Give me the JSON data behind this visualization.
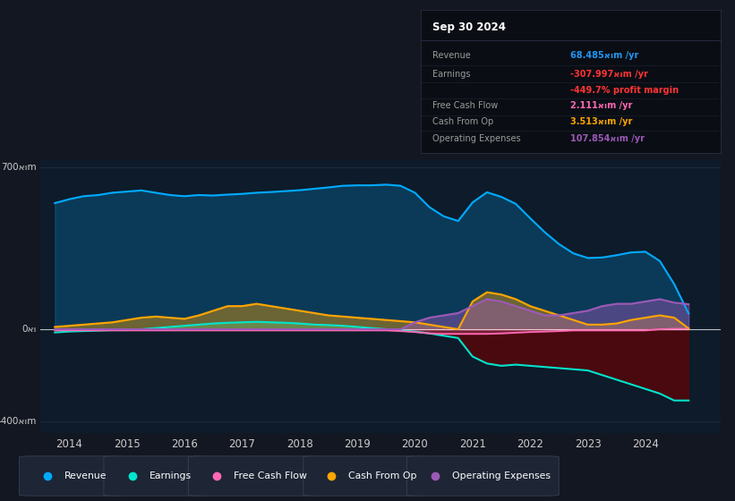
{
  "bg_color": "#131722",
  "plot_bg_color": "#0d1b2a",
  "title": "Sep 30 2024",
  "ylim": [
    -450,
    730
  ],
  "xlim_start": 2013.5,
  "xlim_end": 2025.3,
  "colors": {
    "revenue": "#00aaff",
    "earnings": "#00e5cc",
    "free_cash_flow": "#ff69b4",
    "cash_from_op": "#ffa500",
    "operating_expenses": "#9b59b6"
  },
  "legend": [
    {
      "label": "Revenue",
      "color": "#00aaff"
    },
    {
      "label": "Earnings",
      "color": "#00e5cc"
    },
    {
      "label": "Free Cash Flow",
      "color": "#ff69b4"
    },
    {
      "label": "Cash From Op",
      "color": "#ffa500"
    },
    {
      "label": "Operating Expenses",
      "color": "#9b59b6"
    }
  ],
  "x_ticks": [
    2014,
    2015,
    2016,
    2017,
    2018,
    2019,
    2020,
    2021,
    2022,
    2023,
    2024
  ],
  "revenue_x": [
    2013.75,
    2014.0,
    2014.25,
    2014.5,
    2014.75,
    2015.0,
    2015.25,
    2015.5,
    2015.75,
    2016.0,
    2016.25,
    2016.5,
    2016.75,
    2017.0,
    2017.25,
    2017.5,
    2017.75,
    2018.0,
    2018.25,
    2018.5,
    2018.75,
    2019.0,
    2019.25,
    2019.5,
    2019.75,
    2020.0,
    2020.25,
    2020.5,
    2020.75,
    2021.0,
    2021.25,
    2021.5,
    2021.75,
    2022.0,
    2022.25,
    2022.5,
    2022.75,
    2023.0,
    2023.25,
    2023.5,
    2023.75,
    2024.0,
    2024.25,
    2024.5,
    2024.75
  ],
  "revenue_y": [
    545,
    562,
    575,
    580,
    590,
    595,
    600,
    590,
    580,
    575,
    580,
    578,
    582,
    585,
    590,
    593,
    597,
    601,
    607,
    613,
    620,
    622,
    622,
    625,
    620,
    590,
    528,
    488,
    468,
    548,
    592,
    572,
    542,
    480,
    420,
    368,
    328,
    308,
    310,
    320,
    332,
    335,
    295,
    195,
    68
  ],
  "earnings_x": [
    2013.75,
    2014.0,
    2014.25,
    2014.5,
    2014.75,
    2015.0,
    2015.25,
    2015.5,
    2015.75,
    2016.0,
    2016.25,
    2016.5,
    2016.75,
    2017.0,
    2017.25,
    2017.5,
    2017.75,
    2018.0,
    2018.25,
    2018.5,
    2018.75,
    2019.0,
    2019.25,
    2019.5,
    2019.75,
    2020.0,
    2020.25,
    2020.5,
    2020.75,
    2021.0,
    2021.25,
    2021.5,
    2021.75,
    2022.0,
    2022.25,
    2022.5,
    2022.75,
    2023.0,
    2023.25,
    2023.5,
    2023.75,
    2024.0,
    2024.25,
    2024.5,
    2024.75
  ],
  "earnings_y": [
    -14,
    -10,
    -8,
    -6,
    -4,
    -4,
    0,
    5,
    10,
    15,
    20,
    25,
    28,
    30,
    32,
    30,
    28,
    25,
    20,
    18,
    15,
    10,
    5,
    0,
    -5,
    -10,
    -18,
    -28,
    -38,
    -118,
    -148,
    -158,
    -153,
    -158,
    -163,
    -168,
    -173,
    -178,
    -198,
    -218,
    -238,
    -258,
    -278,
    -308,
    -308
  ],
  "fcf_x": [
    2013.75,
    2014.0,
    2014.25,
    2014.5,
    2014.75,
    2015.0,
    2015.25,
    2015.5,
    2015.75,
    2016.0,
    2016.25,
    2016.5,
    2016.75,
    2017.0,
    2017.25,
    2017.5,
    2017.75,
    2018.0,
    2018.25,
    2018.5,
    2018.75,
    2019.0,
    2019.25,
    2019.5,
    2019.75,
    2020.0,
    2020.25,
    2020.5,
    2020.75,
    2021.0,
    2021.25,
    2021.5,
    2021.75,
    2022.0,
    2022.25,
    2022.5,
    2022.75,
    2023.0,
    2023.25,
    2023.5,
    2023.75,
    2024.0,
    2024.25,
    2024.5,
    2024.75
  ],
  "fcf_y": [
    -5,
    -5,
    -5,
    -5,
    -5,
    -5,
    -5,
    -5,
    -5,
    -5,
    -5,
    -5,
    -5,
    -5,
    -5,
    -5,
    -5,
    -5,
    -5,
    -5,
    -5,
    -5,
    -5,
    -5,
    -8,
    -12,
    -18,
    -20,
    -20,
    -20,
    -20,
    -18,
    -15,
    -12,
    -10,
    -8,
    -5,
    -5,
    -5,
    -5,
    -5,
    -5,
    0,
    2,
    2
  ],
  "cfo_x": [
    2013.75,
    2014.0,
    2014.25,
    2014.5,
    2014.75,
    2015.0,
    2015.25,
    2015.5,
    2015.75,
    2016.0,
    2016.25,
    2016.5,
    2016.75,
    2017.0,
    2017.25,
    2017.5,
    2017.75,
    2018.0,
    2018.25,
    2018.5,
    2018.75,
    2019.0,
    2019.25,
    2019.5,
    2019.75,
    2020.0,
    2020.25,
    2020.5,
    2020.75,
    2021.0,
    2021.25,
    2021.5,
    2021.75,
    2022.0,
    2022.25,
    2022.5,
    2022.75,
    2023.0,
    2023.25,
    2023.5,
    2023.75,
    2024.0,
    2024.25,
    2024.5,
    2024.75
  ],
  "cfo_y": [
    10,
    15,
    20,
    25,
    30,
    40,
    50,
    55,
    50,
    45,
    60,
    80,
    100,
    100,
    110,
    100,
    90,
    80,
    70,
    60,
    55,
    50,
    45,
    40,
    35,
    30,
    20,
    10,
    0,
    120,
    160,
    150,
    130,
    100,
    80,
    60,
    40,
    20,
    20,
    25,
    40,
    50,
    60,
    50,
    3.5
  ],
  "opex_x": [
    2013.75,
    2014.0,
    2014.25,
    2014.5,
    2014.75,
    2015.0,
    2015.25,
    2015.5,
    2015.75,
    2016.0,
    2016.25,
    2016.5,
    2016.75,
    2017.0,
    2017.25,
    2017.5,
    2017.75,
    2018.0,
    2018.25,
    2018.5,
    2018.75,
    2019.0,
    2019.25,
    2019.5,
    2019.75,
    2020.0,
    2020.25,
    2020.5,
    2020.75,
    2021.0,
    2021.25,
    2021.5,
    2021.75,
    2022.0,
    2022.25,
    2022.5,
    2022.75,
    2023.0,
    2023.25,
    2023.5,
    2023.75,
    2024.0,
    2024.25,
    2024.5,
    2024.75
  ],
  "opex_y": [
    0,
    0,
    0,
    0,
    0,
    0,
    0,
    0,
    0,
    0,
    0,
    0,
    0,
    0,
    0,
    0,
    0,
    0,
    0,
    0,
    0,
    0,
    0,
    0,
    0,
    30,
    50,
    60,
    70,
    100,
    130,
    120,
    100,
    80,
    60,
    60,
    70,
    80,
    100,
    110,
    110,
    120,
    130,
    115,
    108
  ]
}
